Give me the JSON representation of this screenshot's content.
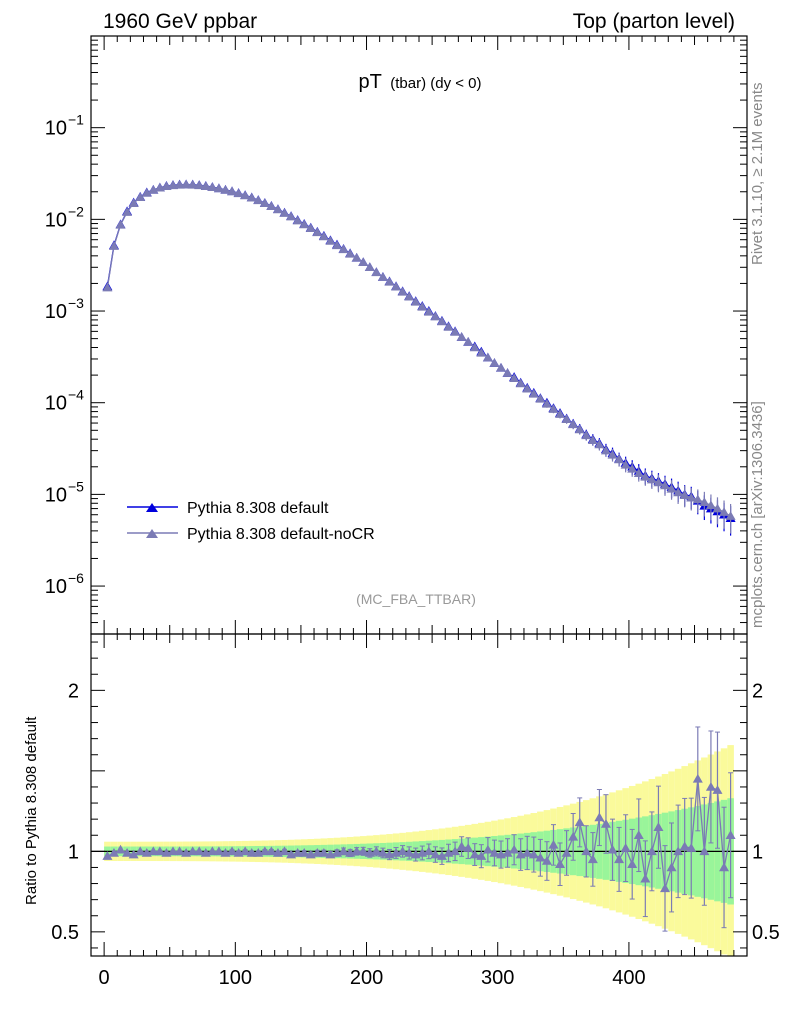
{
  "header": {
    "left": "1960 GeV ppbar",
    "right": "Top (parton level)"
  },
  "plot_title": {
    "main": "pT",
    "sub": "(tbar) (dy < 0)"
  },
  "side_labels": {
    "rivet": "Rivet 3.1.10, ≥ 2.1M events",
    "mcplots": "mcplots.cern.ch [arXiv:1306.3436]"
  },
  "analysis_label": "(MC_FBA_TTBAR)",
  "legend": {
    "placement": "lower-left",
    "entries": [
      "Pythia 8.308 default",
      "Pythia 8.308 default-noCR"
    ]
  },
  "colors": {
    "default": "#0000dd",
    "noCR": "#7b7bb5",
    "band_green": "#99f59a",
    "band_yellow": "#fafa9b"
  },
  "chart_data": [
    {
      "type": "line",
      "panel": "main",
      "yscale": "log",
      "xlim": [
        -10,
        490
      ],
      "ylim": [
        3e-07,
        1
      ],
      "y_ticks": [
        {
          "value": 1e-06,
          "base": "10",
          "exp": "−6"
        },
        {
          "value": 1e-05,
          "base": "10",
          "exp": "−5"
        },
        {
          "value": 0.0001,
          "base": "10",
          "exp": "−4"
        },
        {
          "value": 0.001,
          "base": "10",
          "exp": "−3"
        },
        {
          "value": 0.01,
          "base": "10",
          "exp": "−2"
        },
        {
          "value": 0.1,
          "base": "10",
          "exp": "−1"
        }
      ],
      "x": [
        2.5,
        7.5,
        12.5,
        17.5,
        22.5,
        27.5,
        32.5,
        37.5,
        42.5,
        47.5,
        52.5,
        57.5,
        62.5,
        67.5,
        72.5,
        77.5,
        82.5,
        87.5,
        92.5,
        97.5,
        102.5,
        107.5,
        112.5,
        117.5,
        122.5,
        127.5,
        132.5,
        137.5,
        142.5,
        147.5,
        152.5,
        157.5,
        162.5,
        167.5,
        172.5,
        177.5,
        182.5,
        187.5,
        192.5,
        197.5,
        202.5,
        207.5,
        212.5,
        217.5,
        222.5,
        227.5,
        232.5,
        237.5,
        242.5,
        247.5,
        252.5,
        257.5,
        262.5,
        267.5,
        272.5,
        277.5,
        282.5,
        287.5,
        292.5,
        297.5,
        302.5,
        307.5,
        312.5,
        317.5,
        322.5,
        327.5,
        332.5,
        337.5,
        342.5,
        347.5,
        352.5,
        357.5,
        362.5,
        367.5,
        372.5,
        377.5,
        382.5,
        387.5,
        392.5,
        397.5,
        402.5,
        407.5,
        412.5,
        417.5,
        422.5,
        427.5,
        432.5,
        437.5,
        442.5,
        447.5,
        452.5,
        457.5,
        462.5,
        467.5,
        472.5,
        477.5
      ],
      "series": [
        {
          "name": "Pythia 8.308 default",
          "values": [
            0.00185,
            0.0052,
            0.0088,
            0.0122,
            0.0152,
            0.0176,
            0.0196,
            0.021,
            0.0222,
            0.0231,
            0.0236,
            0.0239,
            0.024,
            0.0239,
            0.0236,
            0.0231,
            0.0225,
            0.0218,
            0.021,
            0.0202,
            0.0193,
            0.0183,
            0.0173,
            0.0162,
            0.0151,
            0.014,
            0.0129,
            0.0118,
            0.0108,
            0.0098,
            0.0089,
            0.0081,
            0.0073,
            0.0066,
            0.0059,
            0.0053,
            0.00475,
            0.00425,
            0.0038,
            0.0034,
            0.003,
            0.00265,
            0.00235,
            0.0021,
            0.00186,
            0.00164,
            0.00145,
            0.00128,
            0.00113,
            0.001,
            0.00088,
            0.00078,
            0.00068,
            0.0006,
            0.00052,
            0.00046,
            0.00041,
            0.00036,
            0.00031,
            0.00027,
            0.00024,
            0.00021,
            0.00019,
            0.000165,
            0.000145,
            0.000128,
            0.000112,
            0.0001,
            8.7e-05,
            7.7e-05,
            6.7e-05,
            5.9e-05,
            5.2e-05,
            4.5e-05,
            4e-05,
            3.6e-05,
            3.1e-05,
            2.8e-05,
            2.45e-05,
            2.2e-05,
            2e-05,
            1.8e-05,
            1.6e-05,
            1.5e-05,
            1.4e-05,
            1.3e-05,
            1.2e-05,
            1.1e-05,
            1e-05,
            9.5e-06,
            8.5e-06,
            7.5e-06,
            7e-06,
            6.5e-06,
            6e-06,
            5.5e-06
          ]
        },
        {
          "name": "Pythia 8.308 default-noCR",
          "values": [
            0.0018,
            0.0051,
            0.0087,
            0.012,
            0.015,
            0.0174,
            0.0194,
            0.0209,
            0.0221,
            0.023,
            0.0235,
            0.0238,
            0.0239,
            0.0238,
            0.0235,
            0.023,
            0.0224,
            0.0217,
            0.0209,
            0.0201,
            0.0192,
            0.0182,
            0.0172,
            0.0161,
            0.015,
            0.0139,
            0.0128,
            0.0117,
            0.0107,
            0.0097,
            0.0088,
            0.008,
            0.0072,
            0.0065,
            0.0058,
            0.0052,
            0.0047,
            0.0042,
            0.0038,
            0.0034,
            0.003,
            0.00264,
            0.00234,
            0.00208,
            0.00184,
            0.00162,
            0.00143,
            0.00126,
            0.00111,
            0.00098,
            0.00087,
            0.00077,
            0.00067,
            0.00059,
            0.00052,
            0.00046,
            0.0004,
            0.00035,
            0.00031,
            0.00027,
            0.00024,
            0.00021,
            0.000185,
            0.000162,
            0.000142,
            0.000125,
            0.00011,
            9.7e-05,
            8.5e-05,
            7.5e-05,
            6.6e-05,
            5.8e-05,
            5.1e-05,
            4.4e-05,
            3.9e-05,
            3.5e-05,
            3e-05,
            2.7e-05,
            2.4e-05,
            2.1e-05,
            1.9e-05,
            1.7e-05,
            1.55e-05,
            1.45e-05,
            1.35e-05,
            1.25e-05,
            1.15e-05,
            1.05e-05,
            9.8e-06,
            9.2e-06,
            8.8e-06,
            8.2e-06,
            7.6e-06,
            7e-06,
            6.4e-06,
            5.8e-06
          ]
        }
      ]
    },
    {
      "type": "line",
      "panel": "ratio",
      "ylabel": "Ratio to Pythia 8.308 default",
      "xlim": [
        -10,
        490
      ],
      "ylim": [
        0.35,
        2.35
      ],
      "y_ticks": [
        {
          "value": 0.5,
          "label": "0.5"
        },
        {
          "value": 1,
          "label": "1"
        },
        {
          "value": 2,
          "label": "2"
        }
      ],
      "x_ticks": [
        {
          "value": 0,
          "label": "0"
        },
        {
          "value": 100,
          "label": "100"
        },
        {
          "value": 200,
          "label": "200"
        },
        {
          "value": 300,
          "label": "300"
        },
        {
          "value": 400,
          "label": "400"
        }
      ],
      "reference": 1,
      "series": [
        {
          "name": "Pythia 8.308 default-noCR",
          "values": [
            0.97,
            0.99,
            1.01,
            0.99,
            0.98,
            1.0,
            0.99,
            1.0,
            1.0,
            0.99,
            1.0,
            1.0,
            0.99,
            1.0,
            1.0,
            0.99,
            1.0,
            1.0,
            0.99,
            1.0,
            0.99,
            1.0,
            0.99,
            0.99,
            1.0,
            1.0,
            0.99,
            1.0,
            0.98,
            0.99,
            0.99,
            0.98,
            0.99,
            0.99,
            0.98,
            0.99,
            1.0,
            0.99,
            1.0,
            1.0,
            0.99,
            1.0,
            0.99,
            0.98,
            0.99,
            1.0,
            0.99,
            0.98,
            0.99,
            1.0,
            0.98,
            0.97,
            0.99,
            1.0,
            1.03,
            1.02,
            0.98,
            0.97,
            1.01,
            0.99,
            0.98,
            0.99,
            1.01,
            0.98,
            0.99,
            0.98,
            0.96,
            0.94,
            1.04,
            0.92,
            0.99,
            1.09,
            1.18,
            1.0,
            0.95,
            1.21,
            1.17,
            1.01,
            0.95,
            1.02,
            0.92,
            1.1,
            0.83,
            1.0,
            1.15,
            0.77,
            0.9,
            1.0,
            1.03,
            1.02,
            1.45,
            1.0,
            1.4,
            1.38,
            0.9,
            1.1
          ]
        }
      ]
    }
  ]
}
